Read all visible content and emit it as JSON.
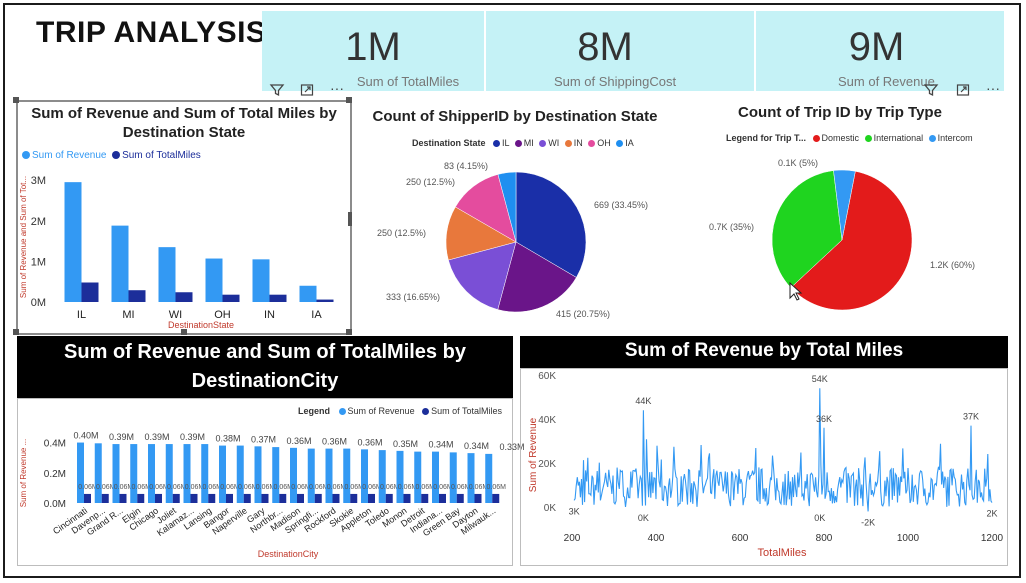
{
  "title": "TRIP ANALYSIS",
  "kpis": [
    {
      "value": "1M",
      "label": "Sum of TotalMiles"
    },
    {
      "value": "8M",
      "label": "Sum of ShippingCost"
    },
    {
      "value": "9M",
      "label": "Sum of Revenue"
    }
  ],
  "colors": {
    "revenue": "#3399f3",
    "miles": "#1c2e9a",
    "red": "#e31b1b",
    "green": "#1fd41f",
    "cyan": "#c5f2f6"
  },
  "icons": [
    "filter-icon",
    "focus-mode-icon",
    "more-options-icon"
  ],
  "chart_data": [
    {
      "type": "bar",
      "title": "Sum of Revenue and Sum of Total Miles by Destination State",
      "xlabel": "DestinationState",
      "ylabel": "Sum of Revenue and Sum of Tot...",
      "categories": [
        "IL",
        "MI",
        "WI",
        "OH",
        "IN",
        "IA"
      ],
      "series": [
        {
          "name": "Sum of Revenue",
          "values": [
            2950000,
            1880000,
            1350000,
            1070000,
            1050000,
            400000
          ]
        },
        {
          "name": "Sum of TotalMiles",
          "values": [
            480000,
            290000,
            240000,
            180000,
            180000,
            60000
          ]
        }
      ],
      "yticks": [
        "0M",
        "1M",
        "2M",
        "3M"
      ],
      "ylim": [
        0,
        3200000
      ],
      "legend_position": "top-left"
    },
    {
      "type": "pie",
      "title": "Count of ShipperID by Destination State",
      "legend_title": "Destination State",
      "labels": [
        "IL",
        "MI",
        "WI",
        "IN",
        "OH",
        "IA"
      ],
      "values": [
        669,
        415,
        333,
        250,
        250,
        83
      ],
      "data_labels": [
        "669 (33.45%)",
        "415 (20.75%)",
        "333 (16.65%)",
        "250 (12.5%)",
        "250 (12.5%)",
        "83 (4.15%)"
      ],
      "colors": [
        "#1a2fa8",
        "#6a1589",
        "#7a4fd6",
        "#e8783c",
        "#e44c9e",
        "#1f8ff0"
      ],
      "legend_position": "top"
    },
    {
      "type": "pie",
      "title": "Count of Trip ID by Trip Type",
      "legend_title": "Legend for Trip T...",
      "labels": [
        "Domestic",
        "International",
        "Intercom"
      ],
      "values": [
        60,
        35,
        5
      ],
      "data_labels": [
        "1.2K (60%)",
        "0.7K (35%)",
        "0.1K (5%)"
      ],
      "colors": [
        "#e31b1b",
        "#1fd41f",
        "#3399f3"
      ],
      "legend_position": "top"
    },
    {
      "type": "bar",
      "title": "Sum of Revenue and Sum of TotalMiles by DestinationCity",
      "xlabel": "DestinationCity",
      "ylabel": "Sum of Revenue ...",
      "legend_title": "Legend",
      "categories": [
        "Cincinnati",
        "Davenp...",
        "Grand R...",
        "Elgin",
        "Chicago",
        "Joliet",
        "Kalamaz...",
        "Lansing",
        "Bangor",
        "Naperville",
        "Gary",
        "Northbr...",
        "Madison",
        "Springfi...",
        "Rockford",
        "Skokie",
        "Appleton",
        "Toledo",
        "Monon",
        "Detroit",
        "Indiana...",
        "Green Bay",
        "Dayton",
        "Milwauk..."
      ],
      "bar_labels": [
        "0.40M",
        "0.39M",
        "0.39M",
        "0.39M",
        "0.38M",
        "0.37M",
        "0.36M",
        "0.36M",
        "0.36M",
        "0.35M",
        "0.34M",
        "0.34M",
        "0.33M"
      ],
      "miles_label": "0.06M",
      "series": [
        {
          "name": "Sum of Revenue",
          "values": [
            400000,
            395000,
            390000,
            390000,
            390000,
            390000,
            390000,
            390000,
            380000,
            380000,
            375000,
            370000,
            365000,
            360000,
            360000,
            360000,
            355000,
            350000,
            345000,
            340000,
            340000,
            335000,
            330000,
            325000
          ]
        },
        {
          "name": "Sum of TotalMiles",
          "values": [
            60000,
            60000,
            60000,
            60000,
            60000,
            60000,
            60000,
            60000,
            60000,
            60000,
            60000,
            60000,
            60000,
            60000,
            60000,
            60000,
            60000,
            60000,
            60000,
            60000,
            60000,
            60000,
            60000,
            60000
          ]
        }
      ],
      "yticks": [
        "0.0M",
        "0.2M",
        "0.4M"
      ],
      "ylim": [
        0,
        450000
      ],
      "legend_position": "top-right"
    },
    {
      "type": "line",
      "title": "Sum of Revenue by Total Miles",
      "xlabel": "TotalMiles",
      "ylabel": "Sum of Revenue",
      "xticks": [
        "200",
        "400",
        "600",
        "800",
        "1000",
        "1200"
      ],
      "yticks": [
        "0K",
        "20K",
        "40K",
        "60K"
      ],
      "xlim": [
        200,
        1200
      ],
      "ylim": [
        0,
        60000
      ],
      "annotations": [
        {
          "text": "44K",
          "x": 370,
          "y": 44000
        },
        {
          "text": "54K",
          "x": 790,
          "y": 54000
        },
        {
          "text": "36K",
          "x": 800,
          "y": 36000
        },
        {
          "text": "37K",
          "x": 1150,
          "y": 37000
        },
        {
          "text": "3K",
          "x": 205,
          "y": 3000
        },
        {
          "text": "0K",
          "x": 370,
          "y": 0
        },
        {
          "text": "0K",
          "x": 790,
          "y": 0
        },
        {
          "text": "-2K",
          "x": 905,
          "y": -2000
        },
        {
          "text": "2K",
          "x": 1200,
          "y": 2000
        }
      ],
      "grid": false
    }
  ]
}
